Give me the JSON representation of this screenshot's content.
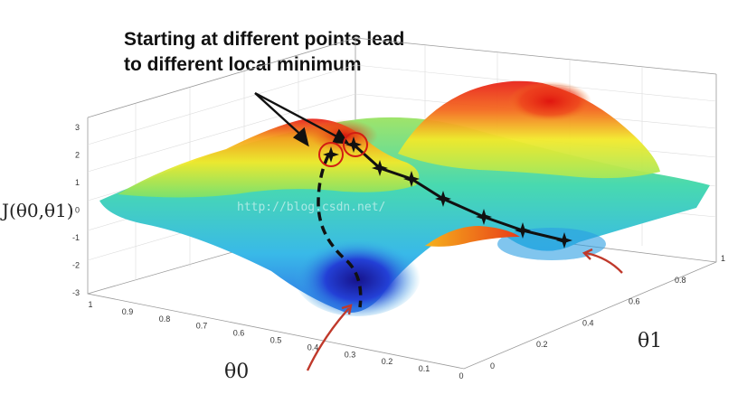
{
  "annotation": {
    "line1": "Starting at different points lead",
    "line2": "to different local minimum"
  },
  "watermark": "http://blog.csdn.net/",
  "chart_data": {
    "type": "surface",
    "title": "",
    "zlabel": "J(θ0,θ1)",
    "xlabel": "θ0",
    "ylabel": "θ1",
    "z_ticks": [
      "3",
      "2",
      "1",
      "0",
      "-1",
      "-2",
      "-3"
    ],
    "theta0_ticks": [
      "1",
      "0.9",
      "0.8",
      "0.7",
      "0.6",
      "0.5",
      "0.4",
      "0.3",
      "0.2",
      "0.1",
      "0"
    ],
    "theta1_ticks": [
      "0",
      "0.2",
      "0.4",
      "0.6",
      "0.8",
      "1"
    ],
    "zlim": [
      -3,
      3
    ],
    "paths": [
      {
        "style": "dashed",
        "role": "descent path ending in left local minimum"
      },
      {
        "style": "solid",
        "marker": "star",
        "role": "descent path ending in right local minimum"
      }
    ],
    "colors": {
      "peak": "#e8231a",
      "mid": "#f2e92a",
      "low": "#37c6e0",
      "valley": "#1c1aa8",
      "arrow": "#c0392b"
    }
  }
}
